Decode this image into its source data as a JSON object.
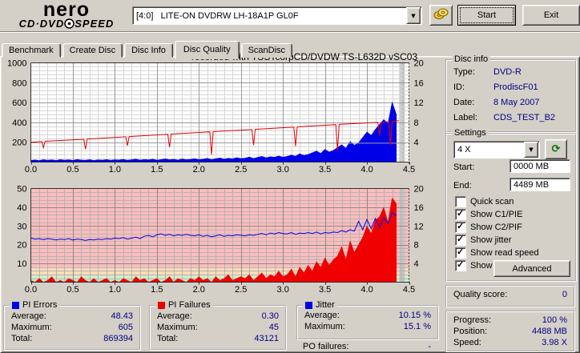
{
  "header": {
    "logo": {
      "line1": "nero",
      "line2a": "CD·DVD",
      "line2b": "SPEED"
    },
    "drive_select": "[4:0]   LITE-ON DVDRW LH-18A1P GL0F",
    "start_button": "Start",
    "exit_button": "Exit"
  },
  "tabs": [
    {
      "label": "Benchmark",
      "active": false
    },
    {
      "label": "Create Disc",
      "active": false
    },
    {
      "label": "Disc Info",
      "active": false
    },
    {
      "label": "Disc Quality",
      "active": true
    },
    {
      "label": "ScanDisc",
      "active": false
    }
  ],
  "chart_data": [
    {
      "type": "area+line",
      "title": "recorded with TSSTcorpCD/DVDW TS-L632D vSC03",
      "xlim": [
        0,
        4.5
      ],
      "left_ylim": [
        0,
        1000
      ],
      "right_ylim": [
        0,
        20
      ],
      "x_ticks": [
        "0.0",
        "0.5",
        "1.0",
        "1.5",
        "2.0",
        "2.5",
        "3.0",
        "3.5",
        "4.0",
        "4.5"
      ],
      "left_ticks": [
        1000,
        800,
        600,
        400,
        200
      ],
      "right_ticks": [
        20,
        16,
        12,
        8,
        4
      ],
      "background": "#ffffff",
      "grid": {
        "x_minor": 0.1,
        "x_major": 0.5,
        "y_minor": 40,
        "y_major": 200
      },
      "cursor": {
        "from": 4.385,
        "to": 4.45,
        "color": "#c4c4c4"
      },
      "series": [
        {
          "name": "PI Errors",
          "axis": "left",
          "type": "area",
          "color": "#0000e8",
          "x_start": 0,
          "x_step": 0.05,
          "values": [
            18,
            22,
            16,
            25,
            19,
            23,
            17,
            26,
            20,
            24,
            18,
            27,
            21,
            19,
            25,
            17,
            23,
            20,
            26,
            19,
            24,
            22,
            28,
            19,
            25,
            31,
            21,
            27,
            23,
            30,
            20,
            26,
            33,
            24,
            29,
            21,
            32,
            25,
            28,
            35,
            26,
            30,
            38,
            27,
            35,
            42,
            31,
            39,
            34,
            45,
            36,
            40,
            52,
            37,
            48,
            58,
            44,
            55,
            49,
            62,
            50,
            58,
            72,
            60,
            85,
            68,
            78,
            95,
            112,
            88,
            130,
            102,
            118,
            148,
            175,
            140,
            210,
            170,
            195,
            250,
            305,
            270,
            330,
            380,
            430,
            390,
            605,
            480
          ]
        },
        {
          "name": "Read speed",
          "axis": "right",
          "type": "line",
          "color": "#a0a0a0",
          "points": [
            [
              3.52,
              3.8
            ],
            [
              4.46,
              3.8
            ]
          ]
        },
        {
          "name": "Write speed",
          "axis": "right",
          "type": "line",
          "color": "#e80000",
          "points": [
            [
              0,
              4.0
            ],
            [
              0.13,
              4.15
            ],
            [
              0.15,
              2.9
            ],
            [
              0.17,
              4.2
            ],
            [
              0.63,
              4.6
            ],
            [
              0.65,
              2.6
            ],
            [
              0.67,
              4.65
            ],
            [
              1.13,
              5.1
            ],
            [
              1.15,
              3.3
            ],
            [
              1.17,
              5.15
            ],
            [
              1.63,
              5.6
            ],
            [
              1.65,
              3.0
            ],
            [
              1.67,
              5.65
            ],
            [
              2.13,
              6.1
            ],
            [
              2.15,
              1.5
            ],
            [
              2.17,
              6.15
            ],
            [
              2.63,
              6.55
            ],
            [
              2.65,
              3.4
            ],
            [
              2.67,
              6.6
            ],
            [
              3.13,
              7.05
            ],
            [
              3.15,
              3.2
            ],
            [
              3.17,
              7.1
            ],
            [
              3.63,
              7.55
            ],
            [
              3.65,
              2.3
            ],
            [
              3.67,
              7.6
            ],
            [
              4.13,
              8.0
            ],
            [
              4.15,
              5.4
            ],
            [
              4.17,
              8.05
            ],
            [
              4.26,
              8.15
            ],
            [
              4.28,
              3.4
            ],
            [
              4.3,
              8.2
            ],
            [
              4.38,
              8.35
            ]
          ]
        }
      ]
    },
    {
      "type": "area+line",
      "xlim": [
        0,
        4.5
      ],
      "left_ylim": [
        0,
        50
      ],
      "right_ylim": [
        0,
        20
      ],
      "x_ticks": [
        "0.0",
        "0.5",
        "1.0",
        "1.5",
        "2.0",
        "2.5",
        "3.0",
        "3.5",
        "4.0",
        "4.5"
      ],
      "left_ticks": [
        50,
        40,
        30,
        20,
        10
      ],
      "right_ticks": [
        20,
        16,
        12,
        8,
        4
      ],
      "bands": [
        {
          "from": 0,
          "to": 3.5,
          "color": "#c9f0c9"
        },
        {
          "from": 3.5,
          "to": 8,
          "color": "#ffdcb9"
        },
        {
          "from": 8,
          "to": 50,
          "color": "#ffbcbc"
        }
      ],
      "grid": {
        "x_minor": 0.1,
        "x_major": 0.5,
        "y_minor": 2,
        "y_major": 10
      },
      "cursor": {
        "from": 4.385,
        "to": 4.45,
        "color": "#c4c4c4"
      },
      "series": [
        {
          "name": "PI Failures",
          "axis": "left",
          "type": "area",
          "color": "#f00000",
          "x_start": 0,
          "x_step": 0.05,
          "values": [
            1,
            0,
            2,
            0,
            1,
            3,
            0,
            1,
            0,
            2,
            1,
            0,
            3,
            1,
            0,
            2,
            0,
            1,
            2,
            0,
            1,
            0,
            2,
            1,
            0,
            3,
            1,
            2,
            0,
            1,
            2,
            0,
            1,
            3,
            0,
            2,
            1,
            0,
            2,
            1,
            3,
            1,
            2,
            0,
            3,
            1,
            2,
            4,
            1,
            2,
            3,
            2,
            4,
            1,
            3,
            5,
            2,
            4,
            3,
            6,
            3,
            4,
            7,
            3,
            8,
            5,
            9,
            6,
            11,
            8,
            13,
            9,
            12,
            14,
            19,
            12,
            22,
            16,
            20,
            24,
            30,
            26,
            33,
            35,
            40,
            32,
            45,
            42
          ]
        },
        {
          "name": "Jitter",
          "axis": "right",
          "type": "line",
          "color": "#0000e8",
          "x_start": 0,
          "x_step": 0.05,
          "values": [
            9.4,
            9.2,
            9.3,
            9.1,
            9.3,
            9.2,
            9.0,
            9.2,
            9.1,
            9.3,
            9.0,
            9.2,
            9.1,
            8.9,
            9.1,
            9.0,
            9.2,
            9.1,
            9.3,
            9.2,
            9.4,
            9.3,
            9.5,
            9.2,
            9.4,
            9.6,
            9.3,
            9.8,
            10.0,
            9.7,
            10.1,
            10.3,
            10.0,
            10.2,
            9.9,
            10.1,
            10.0,
            10.2,
            10.0,
            9.9,
            10.1,
            9.8,
            10.0,
            9.7,
            9.9,
            10.1,
            9.8,
            10.0,
            9.9,
            10.1,
            10.0,
            9.9,
            10.1,
            10.0,
            10.2,
            10.4,
            10.1,
            10.5,
            10.3,
            10.6,
            10.4,
            10.3,
            10.6,
            10.2,
            10.5,
            10.4,
            10.6,
            10.4,
            10.7,
            10.3,
            10.6,
            10.5,
            10.7,
            10.6,
            11.0,
            10.7,
            11.2,
            10.9,
            13.0,
            11.2,
            13.4,
            11.4,
            13.6,
            11.6,
            13.8,
            12.5,
            14.8,
            14.2
          ]
        }
      ]
    }
  ],
  "disc_info": {
    "title": "Disc info",
    "rows": [
      {
        "label": "Type:",
        "value": "DVD-R"
      },
      {
        "label": "ID:",
        "value": "ProdiscF01"
      },
      {
        "label": "Date:",
        "value": "8 May 2007"
      },
      {
        "label": "Label:",
        "value": "CDS_TEST_B2"
      }
    ]
  },
  "settings": {
    "title": "Settings",
    "speed_select": "4 X",
    "start_label": "Start:",
    "start_value": "0000 MB",
    "end_label": "End:",
    "end_value": "4489 MB",
    "checkboxes": [
      {
        "label": "Quick scan",
        "checked": false
      },
      {
        "label": "Show C1/PIE",
        "checked": true
      },
      {
        "label": "Show C2/PIF",
        "checked": true
      },
      {
        "label": "Show jitter",
        "checked": true
      },
      {
        "label": "Show read speed",
        "checked": true
      },
      {
        "label": "Show write speed",
        "checked": true
      }
    ],
    "advanced_button": "Advanced"
  },
  "quality_score": {
    "label": "Quality score:",
    "value": "0"
  },
  "status": {
    "rows": [
      {
        "label": "Progress:",
        "value": "100 %"
      },
      {
        "label": "Position:",
        "value": "4488 MB"
      },
      {
        "label": "Speed:",
        "value": "3.98 X"
      }
    ]
  },
  "stats": {
    "pi_errors": {
      "title": "PI Errors",
      "marker_color": "#0000e8",
      "rows": [
        {
          "label": "Average:",
          "value": "48.43"
        },
        {
          "label": "Maximum:",
          "value": "605"
        },
        {
          "label": "Total:",
          "value": "869394"
        }
      ]
    },
    "pi_failures": {
      "title": "PI Failures",
      "marker_color": "#f00000",
      "rows": [
        {
          "label": "Average:",
          "value": "0.30"
        },
        {
          "label": "Maximum:",
          "value": "45"
        },
        {
          "label": "Total:",
          "value": "43121"
        }
      ]
    },
    "jitter": {
      "title": "Jitter",
      "marker_color": "#0000e8",
      "rows": [
        {
          "label": "Average:",
          "value": "10.15 %"
        },
        {
          "label": "Maximum:",
          "value": "15.1 %"
        }
      ]
    },
    "po_failures": {
      "label": "PO failures:",
      "value": "-"
    }
  }
}
